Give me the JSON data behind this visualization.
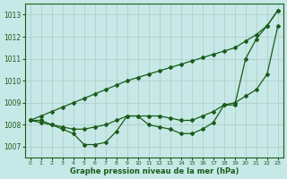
{
  "xlabel": "Graphe pression niveau de la mer (hPa)",
  "xlim": [
    -0.5,
    23.5
  ],
  "ylim": [
    1006.5,
    1013.5
  ],
  "yticks": [
    1007,
    1008,
    1009,
    1010,
    1011,
    1012,
    1013
  ],
  "xticks": [
    0,
    1,
    2,
    3,
    4,
    5,
    6,
    7,
    8,
    9,
    10,
    11,
    12,
    13,
    14,
    15,
    16,
    17,
    18,
    19,
    20,
    21,
    22,
    23
  ],
  "bg_color": "#c6e8e6",
  "grid_color": "#b0c8c8",
  "line_color": "#1a5c1a",
  "series1": {
    "x": [
      0,
      1,
      2,
      3,
      4,
      5,
      6,
      7,
      8,
      9,
      10,
      11,
      12,
      13,
      14,
      15,
      16,
      17,
      18,
      19,
      20,
      21,
      22,
      23
    ],
    "y": [
      1008.2,
      1008.4,
      1008.6,
      1008.8,
      1009.0,
      1009.2,
      1009.4,
      1009.6,
      1009.8,
      1010.0,
      1010.15,
      1010.3,
      1010.45,
      1010.6,
      1010.75,
      1010.9,
      1011.05,
      1011.2,
      1011.35,
      1011.5,
      1011.8,
      1012.1,
      1012.5,
      1013.2
    ]
  },
  "series2": {
    "x": [
      0,
      1,
      2,
      3,
      4,
      5,
      6,
      7,
      8,
      9,
      10,
      11,
      12,
      13,
      14,
      15,
      16,
      17,
      18,
      19,
      20,
      21,
      22,
      23
    ],
    "y": [
      1008.2,
      1008.2,
      1008.0,
      1007.8,
      1007.6,
      1007.1,
      1007.1,
      1007.2,
      1007.7,
      1008.4,
      1008.4,
      1008.0,
      1007.9,
      1007.8,
      1007.6,
      1007.6,
      1007.8,
      1008.1,
      1008.9,
      1008.9,
      1011.0,
      1011.9,
      1012.5,
      1013.2
    ]
  },
  "series3": {
    "x": [
      0,
      1,
      2,
      3,
      4,
      5,
      6,
      7,
      8,
      9,
      10,
      11,
      12,
      13,
      14,
      15,
      16,
      17,
      18,
      19,
      20,
      21,
      22,
      23
    ],
    "y": [
      1008.2,
      1008.1,
      1008.0,
      1007.9,
      1007.8,
      1007.8,
      1007.9,
      1008.0,
      1008.2,
      1008.4,
      1008.4,
      1008.4,
      1008.4,
      1008.3,
      1008.2,
      1008.2,
      1008.4,
      1008.6,
      1008.9,
      1009.0,
      1009.3,
      1009.6,
      1010.3,
      1012.5
    ]
  }
}
